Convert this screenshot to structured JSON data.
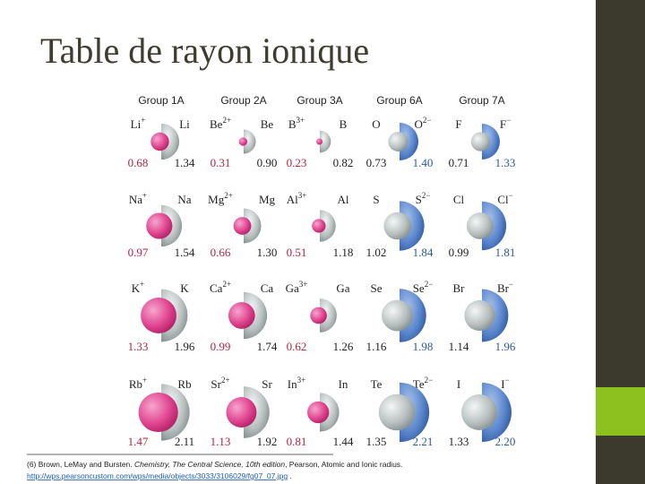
{
  "title": "Table de rayon ionique",
  "groups": [
    {
      "header": "Group 1A",
      "cells": [
        {
          "left": {
            "symbol": "Li",
            "charge": "+"
          },
          "right": {
            "symbol": "Li"
          },
          "left_radius": "0.68",
          "right_radius": "1.34"
        },
        {
          "left": {
            "symbol": "Na",
            "charge": "+"
          },
          "right": {
            "symbol": "Na"
          },
          "left_radius": "0.97",
          "right_radius": "1.54"
        },
        {
          "left": {
            "symbol": "K",
            "charge": "+"
          },
          "right": {
            "symbol": "K"
          },
          "left_radius": "1.33",
          "right_radius": "1.96"
        },
        {
          "left": {
            "symbol": "Rb",
            "charge": "+"
          },
          "right": {
            "symbol": "Rb"
          },
          "left_radius": "1.47",
          "right_radius": "2.11"
        }
      ]
    },
    {
      "header": "Group 2A",
      "cells": [
        {
          "left": {
            "symbol": "Be",
            "charge": "2+"
          },
          "right": {
            "symbol": "Be"
          },
          "left_radius": "0.31",
          "right_radius": "0.90"
        },
        {
          "left": {
            "symbol": "Mg",
            "charge": "2+"
          },
          "right": {
            "symbol": "Mg"
          },
          "left_radius": "0.66",
          "right_radius": "1.30"
        },
        {
          "left": {
            "symbol": "Ca",
            "charge": "2+"
          },
          "right": {
            "symbol": "Ca"
          },
          "left_radius": "0.99",
          "right_radius": "1.74"
        },
        {
          "left": {
            "symbol": "Sr",
            "charge": "2+"
          },
          "right": {
            "symbol": "Sr"
          },
          "left_radius": "1.13",
          "right_radius": "1.92"
        }
      ]
    },
    {
      "header": "Group 3A",
      "cells": [
        {
          "left": {
            "symbol": "B",
            "charge": "3+"
          },
          "right": {
            "symbol": "B"
          },
          "left_radius": "0.23",
          "right_radius": "0.82"
        },
        {
          "left": {
            "symbol": "Al",
            "charge": "3+"
          },
          "right": {
            "symbol": "Al"
          },
          "left_radius": "0.51",
          "right_radius": "1.18"
        },
        {
          "left": {
            "symbol": "Ga",
            "charge": "3+"
          },
          "right": {
            "symbol": "Ga"
          },
          "left_radius": "0.62",
          "right_radius": "1.26"
        },
        {
          "left": {
            "symbol": "In",
            "charge": "3+"
          },
          "right": {
            "symbol": "In"
          },
          "left_radius": "0.81",
          "right_radius": "1.44"
        }
      ]
    },
    {
      "header": "Group 6A",
      "cells": [
        {
          "left": {
            "symbol": "O"
          },
          "right": {
            "symbol": "O",
            "charge": "2−"
          },
          "left_radius": "0.73",
          "right_radius": "1.40"
        },
        {
          "left": {
            "symbol": "S"
          },
          "right": {
            "symbol": "S",
            "charge": "2−"
          },
          "left_radius": "1.02",
          "right_radius": "1.84"
        },
        {
          "left": {
            "symbol": "Se"
          },
          "right": {
            "symbol": "Se",
            "charge": "2−"
          },
          "left_radius": "1.16",
          "right_radius": "1.98"
        },
        {
          "left": {
            "symbol": "Te"
          },
          "right": {
            "symbol": "Te",
            "charge": "2−"
          },
          "left_radius": "1.35",
          "right_radius": "2.21"
        }
      ]
    },
    {
      "header": "Group 7A",
      "cells": [
        {
          "left": {
            "symbol": "F"
          },
          "right": {
            "symbol": "F",
            "charge": "−"
          },
          "left_radius": "0.71",
          "right_radius": "1.33"
        },
        {
          "left": {
            "symbol": "Cl"
          },
          "right": {
            "symbol": "Cl",
            "charge": "−"
          },
          "left_radius": "0.99",
          "right_radius": "1.81"
        },
        {
          "left": {
            "symbol": "Br"
          },
          "right": {
            "symbol": "Br",
            "charge": "−"
          },
          "left_radius": "1.14",
          "right_radius": "1.96"
        },
        {
          "left": {
            "symbol": "I"
          },
          "right": {
            "symbol": "I",
            "charge": "−"
          },
          "left_radius": "1.33",
          "right_radius": "2.20"
        }
      ]
    }
  ],
  "reference": {
    "prefix": "(6) Brown, LeMay and Bursten. ",
    "book": "Chemistry, The Central Science, 10th edition",
    "suffix": ", Pearson, Atomic and Ionic radius.",
    "link": "http://wps.pearsoncustom.com/wps/media/objects/3033/3106029/fg07_07.jpg",
    "end": " ."
  }
}
